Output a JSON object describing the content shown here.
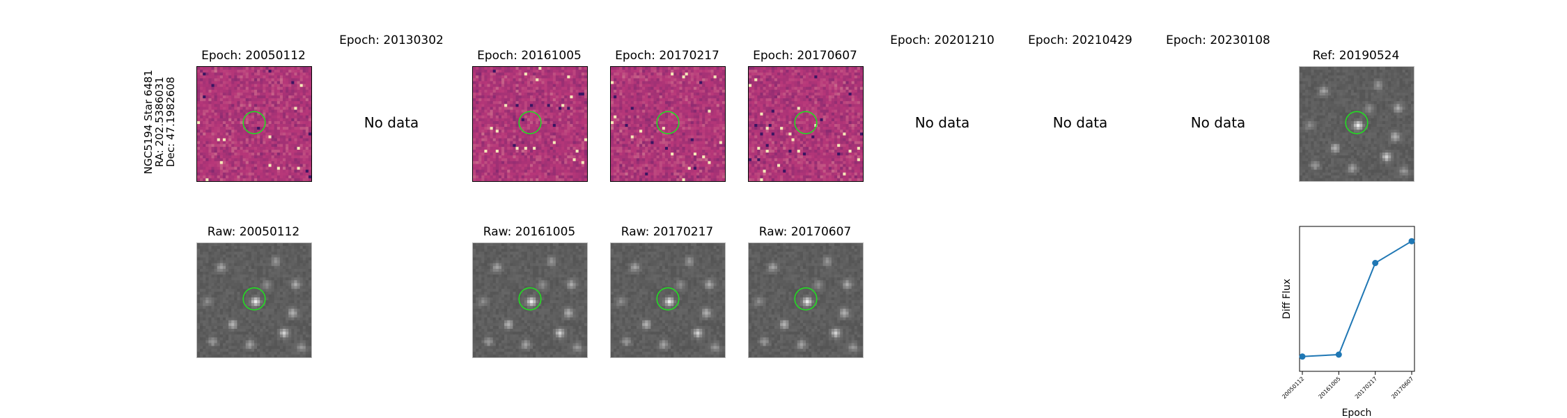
{
  "star": {
    "name": "NGC5194 Star 6481",
    "ra": "RA: 202.5386031",
    "dec": "Dec: 47.1982608"
  },
  "top_row": [
    {
      "title": "Epoch: 20050112",
      "type": "diff"
    },
    {
      "title": "Epoch: 20130302",
      "type": "nodata",
      "text": "No data"
    },
    {
      "title": "Epoch: 20161005",
      "type": "diff"
    },
    {
      "title": "Epoch: 20170217",
      "type": "diff"
    },
    {
      "title": "Epoch: 20170607",
      "type": "diff"
    },
    {
      "title": "Epoch: 20201210",
      "type": "nodata",
      "text": "No data"
    },
    {
      "title": "Epoch: 20210429",
      "type": "nodata",
      "text": "No data"
    },
    {
      "title": "Epoch: 20230108",
      "type": "nodata",
      "text": "No data"
    },
    {
      "title": "Ref: 20190524",
      "type": "ref"
    }
  ],
  "bottom_row": [
    {
      "title": "Raw: 20050112"
    },
    {
      "title": "Raw: 20161005"
    },
    {
      "title": "Raw: 20170217"
    },
    {
      "title": "Raw: 20170607"
    }
  ],
  "colors": {
    "aperture": "#22dd22",
    "line": "#1f77b4",
    "diff_low": "#2c115f",
    "diff_mid": "#b73779",
    "diff_high": "#fcfdbf"
  },
  "chart_data": {
    "type": "line",
    "categories": [
      "20050112",
      "20161005",
      "20170217",
      "20170607"
    ],
    "values": [
      0.05,
      0.065,
      0.78,
      0.95
    ],
    "xlabel": "Epoch",
    "ylabel": "Diff Flux",
    "ylim": [
      0,
      1
    ]
  }
}
